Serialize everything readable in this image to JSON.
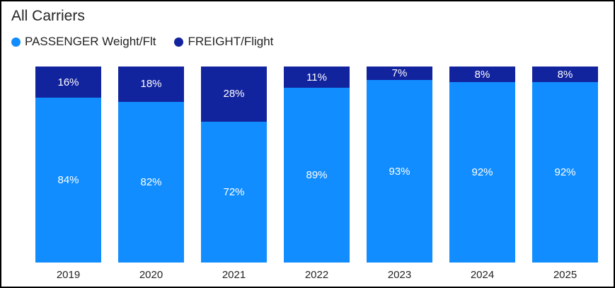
{
  "title": "All Carriers",
  "legend": [
    {
      "key": "passenger",
      "label": "PASSENGER Weight/Flt",
      "color": "#118DFF"
    },
    {
      "key": "freight",
      "label": "FREIGHT/Flight",
      "color": "#12239E"
    }
  ],
  "chart_data": {
    "type": "bar",
    "stacked": true,
    "title": "All Carriers",
    "categories": [
      "2019",
      "2020",
      "2021",
      "2022",
      "2023",
      "2024",
      "2025"
    ],
    "series": [
      {
        "name": "PASSENGER Weight/Flt",
        "color": "#118DFF",
        "values": [
          84,
          82,
          72,
          89,
          93,
          92,
          92
        ],
        "labels": [
          "84%",
          "82%",
          "72%",
          "89%",
          "93%",
          "92%",
          "92%"
        ]
      },
      {
        "name": "FREIGHT/Flight",
        "color": "#12239E",
        "values": [
          16,
          18,
          28,
          11,
          7,
          8,
          8
        ],
        "labels": [
          "16%",
          "18%",
          "28%",
          "11%",
          "7%",
          "8%",
          "8%"
        ]
      }
    ],
    "value_format": "percent",
    "ylim": [
      0,
      100
    ],
    "grid": false,
    "legend_position": "top-left",
    "label_color": "#ffffff",
    "axis_label_color": "#252423"
  }
}
